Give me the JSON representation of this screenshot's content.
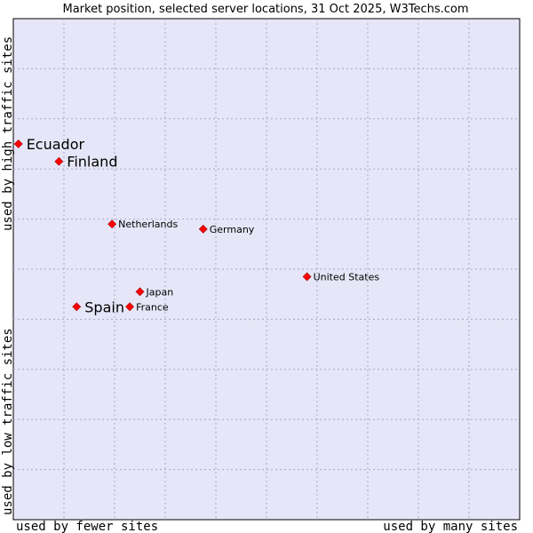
{
  "chart_data": {
    "type": "scatter",
    "title": "Market position, selected server locations, 31 Oct 2025, W3Techs.com",
    "xlabel_low": "used by fewer sites",
    "xlabel_high": "used by many sites",
    "ylabel_high": "used by high traffic sites",
    "ylabel_low": "used by low traffic sites",
    "xlim": [
      0,
      10
    ],
    "ylim": [
      0,
      10
    ],
    "grid": true,
    "points": [
      {
        "label": "Ecuador",
        "x": 0.1,
        "y": 7.5,
        "emphasis": true
      },
      {
        "label": "Finland",
        "x": 0.9,
        "y": 7.15,
        "emphasis": true
      },
      {
        "label": "Netherlands",
        "x": 1.95,
        "y": 5.9,
        "emphasis": false
      },
      {
        "label": "Germany",
        "x": 3.75,
        "y": 5.8,
        "emphasis": false
      },
      {
        "label": "United States",
        "x": 5.8,
        "y": 4.85,
        "emphasis": false
      },
      {
        "label": "Japan",
        "x": 2.5,
        "y": 4.55,
        "emphasis": false
      },
      {
        "label": "France",
        "x": 2.3,
        "y": 4.25,
        "emphasis": false
      },
      {
        "label": "Spain",
        "x": 1.25,
        "y": 4.25,
        "emphasis": true
      }
    ]
  },
  "colors": {
    "plot_bg": "#e6e6f8",
    "grid": "#a8a8c8",
    "marker": "#ff0000",
    "text": "#000000"
  }
}
